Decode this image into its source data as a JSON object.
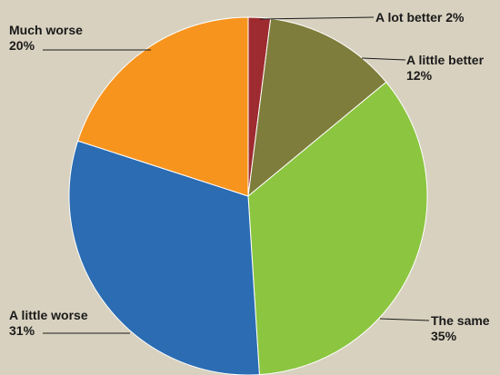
{
  "chart_data": {
    "type": "pie",
    "title": "",
    "slices": [
      {
        "label": "A lot better",
        "value": 2,
        "value_text": "2%",
        "color": "#9e2b30"
      },
      {
        "label": "A little better",
        "value": 12,
        "value_text": "12%",
        "color": "#7e7d3b"
      },
      {
        "label": "The same",
        "value": 35,
        "value_text": "35%",
        "color": "#8cc540"
      },
      {
        "label": "A little worse",
        "value": 31,
        "value_text": "31%",
        "color": "#2b6cb3"
      },
      {
        "label": "Much worse",
        "value": 20,
        "value_text": "20%",
        "color": "#f7941e"
      }
    ],
    "start": "12 o'clock",
    "direction": "clockwise",
    "legend": "none"
  },
  "colors": {
    "background": "#d8d1bf",
    "slice_border": "#ffffff",
    "text": "#1a1a1a"
  }
}
